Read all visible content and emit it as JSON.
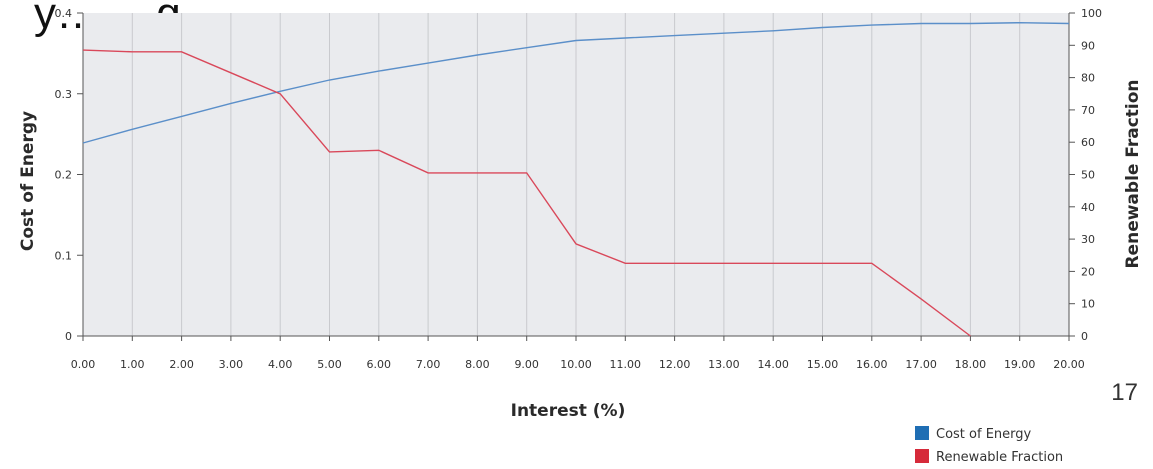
{
  "page": {
    "title": "y… …g",
    "slide_number": "17"
  },
  "colors": {
    "plot_background": "#eaebee",
    "grid": "#c9cace",
    "cost_line": "#5b8fc9",
    "renewable_line": "#d9485a",
    "legend_cost": "#1f6eb4",
    "legend_renewable": "#d62a3a"
  },
  "chart_data": {
    "type": "line",
    "title": "",
    "xlabel": "Interest (%)",
    "ylabel": "Cost of Energy",
    "y2label": "Renewable Fraction",
    "x": [
      0,
      1,
      2,
      3,
      4,
      5,
      6,
      7,
      8,
      9,
      10,
      11,
      12,
      13,
      14,
      15,
      16,
      17,
      18,
      19,
      20
    ],
    "x_tick_labels": [
      "0.00",
      "1.00",
      "2.00",
      "3.00",
      "4.00",
      "5.00",
      "6.00",
      "7.00",
      "8.00",
      "9.00",
      "10.00",
      "11.00",
      "12.00",
      "13.00",
      "14.00",
      "15.00",
      "16.00",
      "17.00",
      "18.00",
      "19.00",
      "20.00"
    ],
    "xlim": [
      0,
      20
    ],
    "ylim": [
      0,
      0.4
    ],
    "y_ticks": [
      0,
      0.1,
      0.2,
      0.3,
      0.4
    ],
    "y_tick_labels": [
      "0",
      "0.1",
      "0.2",
      "0.3",
      "0.4"
    ],
    "y2lim": [
      0,
      100
    ],
    "y2_ticks": [
      0,
      10,
      20,
      30,
      40,
      50,
      60,
      70,
      80,
      90,
      100
    ],
    "y2_tick_labels": [
      "0",
      "10",
      "20",
      "30",
      "40",
      "50",
      "60",
      "70",
      "80",
      "90",
      "100"
    ],
    "grid": true,
    "legend_position": "bottom-right",
    "series": [
      {
        "name": "Cost of Energy",
        "axis": "left",
        "values": [
          0.239,
          0.256,
          0.272,
          0.288,
          0.303,
          0.317,
          0.328,
          0.338,
          0.348,
          0.357,
          0.366,
          0.369,
          0.372,
          0.375,
          0.378,
          0.382,
          0.385,
          0.387,
          0.387,
          0.388,
          0.387
        ]
      },
      {
        "name": "Renewable Fraction",
        "axis": "right",
        "values": [
          88.5,
          88,
          88,
          81.5,
          75,
          57,
          57.5,
          50.5,
          50.5,
          50.5,
          28.5,
          22.5,
          22.5,
          22.5,
          22.5,
          22.5,
          22.5,
          11.5,
          0,
          null,
          null
        ]
      }
    ]
  }
}
